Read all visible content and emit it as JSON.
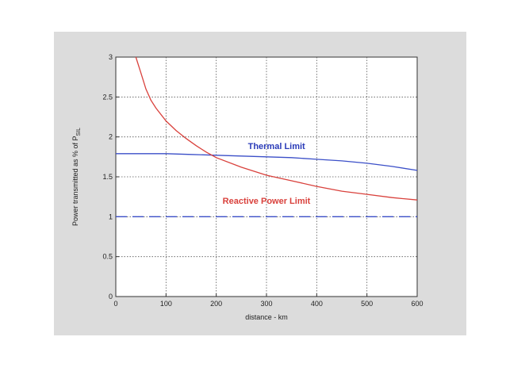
{
  "chart_data": {
    "type": "line",
    "xlabel": "distance - km",
    "ylabel": "Power transmitted as % of P",
    "ylabel_subscript": "SIL",
    "xlim": [
      0,
      600
    ],
    "ylim": [
      0,
      3
    ],
    "xticks": [
      "0",
      "100",
      "200",
      "300",
      "400",
      "500",
      "600"
    ],
    "yticks": [
      "0",
      "0.5",
      "1",
      "1.5",
      "2",
      "2.5",
      "3"
    ],
    "grid": true,
    "series": [
      {
        "name": "Thermal Limit",
        "color": "#3b4fc8",
        "style": "solid",
        "x": [
          0,
          100,
          150,
          200,
          300,
          350,
          400,
          450,
          500,
          550,
          600
        ],
        "y": [
          1.79,
          1.79,
          1.78,
          1.77,
          1.75,
          1.74,
          1.72,
          1.7,
          1.67,
          1.63,
          1.58
        ]
      },
      {
        "name": "Reactive Power Limit",
        "color": "#d9413c",
        "style": "solid",
        "x": [
          40,
          50,
          60,
          70,
          80,
          100,
          120,
          140,
          160,
          180,
          200,
          250,
          300,
          350,
          400,
          450,
          500,
          550,
          600
        ],
        "y": [
          3.0,
          2.8,
          2.6,
          2.46,
          2.36,
          2.2,
          2.08,
          1.98,
          1.89,
          1.81,
          1.74,
          1.62,
          1.52,
          1.45,
          1.38,
          1.32,
          1.28,
          1.24,
          1.21
        ]
      },
      {
        "name": "",
        "color": "#3b4fc8",
        "style": "dashed",
        "x": [
          0,
          600
        ],
        "y": [
          1.0,
          1.0
        ]
      }
    ],
    "annotations": [
      {
        "text": "Thermal Limit",
        "x": 320,
        "y": 1.85,
        "color": "#2a3bb8"
      },
      {
        "text": "Reactive Power Limit",
        "x": 300,
        "y": 1.16,
        "color": "#d9413c"
      }
    ]
  }
}
